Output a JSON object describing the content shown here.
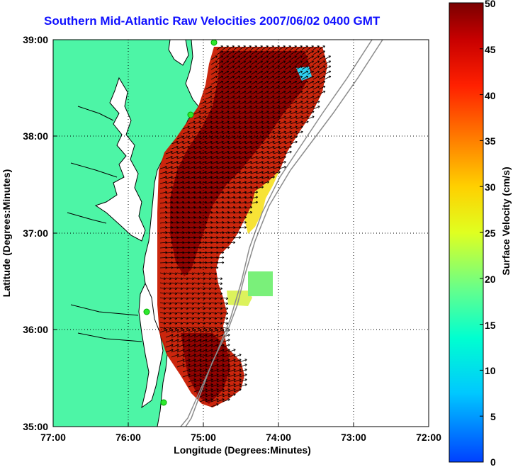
{
  "title": "Southern Mid-Atlantic Raw Velocities 2007/06/02 0400 GMT",
  "axes": {
    "xlabel": "Longitude (Degrees:Minutes)",
    "ylabel": "Latitude (Degrees:Minutes)",
    "x_ticks": [
      "77:00",
      "76:00",
      "75:00",
      "74:00",
      "73:00",
      "72:00"
    ],
    "y_ticks": [
      "39:00",
      "38:00",
      "37:00",
      "36:00",
      "35:00"
    ]
  },
  "colorbar": {
    "label": "Surface Velocity (cm/s)",
    "ticks": [
      "50",
      "45",
      "40",
      "35",
      "30",
      "25",
      "20",
      "15",
      "10",
      "5",
      "0"
    ],
    "min": 0,
    "max": 50
  },
  "colors": {
    "title": "#1010ff",
    "land": "#4df5a6",
    "coast": "#000000",
    "bathymetry": "#8c8c8c",
    "station": "#2ee82e"
  }
}
